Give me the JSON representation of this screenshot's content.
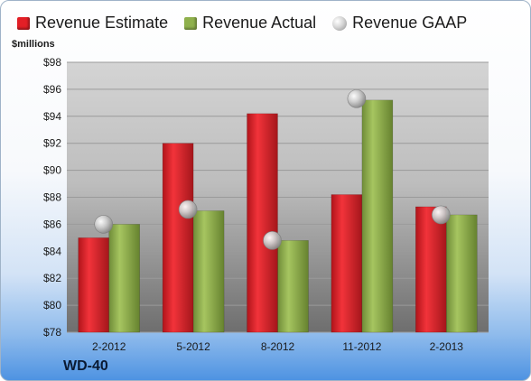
{
  "legend": {
    "estimate": "Revenue Estimate",
    "actual": "Revenue Actual",
    "gaap": "Revenue GAAP"
  },
  "unit_label": "$millions",
  "company": "WD-40",
  "colors": {
    "estimate": "#e31f26",
    "actual": "#8fb04c",
    "gaap": "#bdbdbd"
  },
  "chart_data": {
    "type": "bar",
    "categories": [
      "2-2012",
      "5-2012",
      "8-2012",
      "11-2012",
      "2-2013"
    ],
    "series": [
      {
        "name": "Revenue Estimate",
        "values": [
          85.0,
          92.0,
          94.2,
          88.2,
          87.3
        ]
      },
      {
        "name": "Revenue Actual",
        "values": [
          86.0,
          87.0,
          84.8,
          95.2,
          86.7
        ]
      },
      {
        "name": "Revenue GAAP",
        "marker": "sphere",
        "values": [
          86.0,
          87.1,
          84.8,
          95.3,
          86.7
        ]
      }
    ],
    "ylabel": "$millions",
    "ylim": [
      78,
      98
    ],
    "yticks": [
      "$98",
      "$96",
      "$94",
      "$92",
      "$90",
      "$88",
      "$86",
      "$84",
      "$82",
      "$80",
      "$78"
    ],
    "grid": true,
    "legend_position": "top"
  }
}
